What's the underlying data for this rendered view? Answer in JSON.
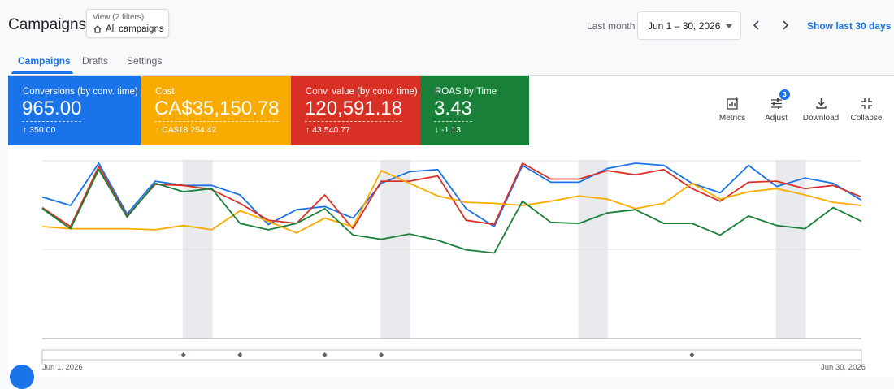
{
  "header": {
    "title": "Campaigns",
    "view_filters": "View (2 filters)",
    "view_selection": "All campaigns",
    "last_label": "Last month",
    "date_range": "Jun 1 – 30, 2026",
    "show_last": "Show last 30 days"
  },
  "tabs": [
    {
      "label": "Campaigns",
      "active": true
    },
    {
      "label": "Drafts",
      "active": false
    },
    {
      "label": "Settings",
      "active": false
    }
  ],
  "scorecards": [
    {
      "label": "Conversions (by conv. time)",
      "value": "965.00",
      "delta": "350.00",
      "direction": "up",
      "color": "#1a73e8"
    },
    {
      "label": "Cost",
      "value": "CA$35,150.78",
      "delta": "CA$18,254.42",
      "direction": "up",
      "color": "#f9ab00"
    },
    {
      "label": "Conv. value (by conv. time)",
      "value": "120,591.18",
      "delta": "43,540.77",
      "direction": "up",
      "color": "#d93025"
    },
    {
      "label": "ROAS by Time",
      "value": "3.43",
      "delta": "-1.13",
      "direction": "down",
      "color": "#188038"
    }
  ],
  "tools": [
    {
      "label": "Metrics",
      "icon": "metrics-icon"
    },
    {
      "label": "Adjust",
      "icon": "adjust-icon",
      "badge": "3"
    },
    {
      "label": "Download",
      "icon": "download-icon"
    },
    {
      "label": "Collapse",
      "icon": "collapse-icon"
    }
  ],
  "chart_data": {
    "type": "line",
    "x_start_label": "Jun 1, 2026",
    "x_end_label": "Jun 30, 2026",
    "weekend_bands": [
      6,
      13,
      20,
      27
    ],
    "annotation_days": [
      6,
      8,
      11,
      13,
      24
    ],
    "series": [
      {
        "color": "#1a73e8",
        "values": [
          68,
          60,
          100,
          52,
          83,
          79,
          79,
          70,
          42,
          56,
          59,
          48,
          81,
          92,
          94,
          57,
          40,
          98,
          82,
          82,
          95,
          100,
          98,
          81,
          72,
          98,
          78,
          86,
          81,
          65
        ]
      },
      {
        "color": "#d93025",
        "values": [
          58,
          40,
          97,
          50,
          80,
          79,
          75,
          62,
          46,
          43,
          70,
          38,
          83,
          83,
          88,
          46,
          42,
          100,
          85,
          85,
          93,
          89,
          94,
          76,
          64,
          82,
          83,
          76,
          79,
          68
        ]
      },
      {
        "color": "#f9ab00",
        "values": [
          40,
          38,
          38,
          38,
          37,
          41,
          37,
          55,
          45,
          34,
          48,
          40,
          93,
          81,
          69,
          63,
          62,
          60,
          64,
          69,
          66,
          57,
          62,
          81,
          66,
          73,
          76,
          70,
          63,
          60
        ]
      },
      {
        "color": "#188038",
        "values": [
          57,
          38,
          94,
          49,
          81,
          73,
          76,
          43,
          37,
          43,
          57,
          32,
          28,
          33,
          27,
          18,
          15,
          64,
          44,
          43,
          53,
          56,
          43,
          43,
          32,
          50,
          41,
          38,
          58,
          45
        ]
      }
    ]
  }
}
